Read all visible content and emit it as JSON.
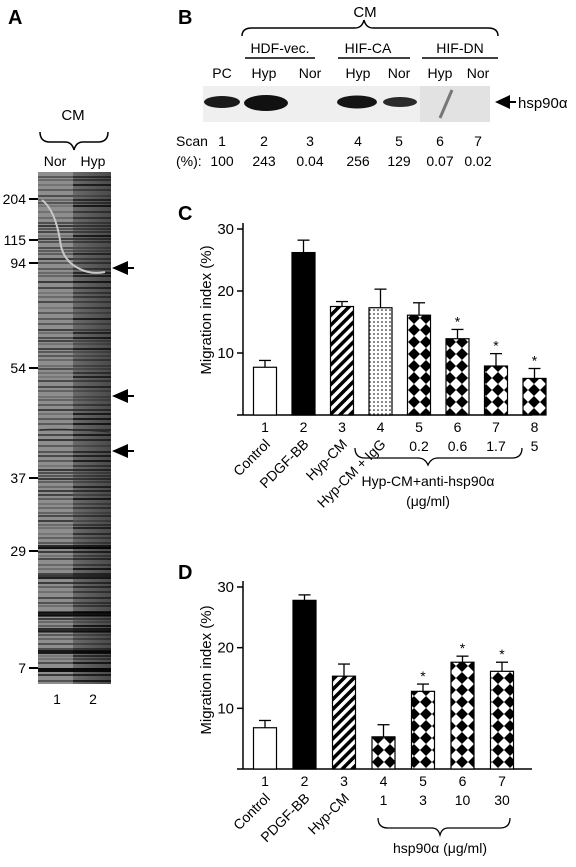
{
  "panels": {
    "a": "A",
    "b": "B",
    "c": "C",
    "d": "D"
  },
  "panel_a": {
    "cm_label": "CM",
    "lane_headers": [
      "Nor",
      "Hyp"
    ],
    "lane_numbers": [
      "1",
      "2"
    ],
    "markers": [
      {
        "label": "204",
        "kda": 204
      },
      {
        "label": "115",
        "kda": 115
      },
      {
        "label": "94",
        "kda": 94
      },
      {
        "label": "54",
        "kda": 54
      },
      {
        "label": "37",
        "kda": 37
      },
      {
        "label": "29",
        "kda": 29
      },
      {
        "label": "7",
        "kda": 7
      }
    ]
  },
  "panel_b": {
    "cm_label": "CM",
    "groups": [
      "HDF-vec.",
      "HIF-CA",
      "HIF-DN"
    ],
    "lanes": [
      "PC",
      "Hyp",
      "Nor",
      "Hyp",
      "Nor",
      "Hyp",
      "Nor"
    ],
    "scan_label": "Scan",
    "pct_label": "(%):",
    "scan_numbers": [
      "1",
      "2",
      "3",
      "4",
      "5",
      "6",
      "7"
    ],
    "scan_values": [
      "100",
      "243",
      "0.04",
      "256",
      "129",
      "0.07",
      "0.02"
    ],
    "band_label": "hsp90α"
  },
  "chart_data": [
    {
      "type": "bar",
      "panel": "C",
      "ylabel": "Migration index (%)",
      "ylim": [
        0,
        30
      ],
      "yticks": [
        "0",
        "10",
        "20",
        "30"
      ],
      "categories": [
        "Control",
        "PDGF-BB",
        "Hyp-CM",
        "Hyp-CM + IgG",
        "5",
        "6",
        "7",
        "8"
      ],
      "bar_numbers": [
        "1",
        "2",
        "3",
        "4",
        "5",
        "6",
        "7",
        "8"
      ],
      "category_labels": [
        "Control",
        "PDGF-BB",
        "Hyp-CM",
        "Hyp-CM + IgG"
      ],
      "dose_labels": [
        "0.2",
        "0.6",
        "1.7",
        "5"
      ],
      "group_label": "Hyp-CM+anti-hsp90α",
      "group_unit": "(μg/ml)",
      "values": [
        7.7,
        26.2,
        17.5,
        17.3,
        16.1,
        12.3,
        7.9,
        5.9
      ],
      "errors": [
        1.1,
        2.0,
        0.8,
        3.0,
        2.0,
        1.5,
        2.0,
        1.6
      ],
      "significant": [
        false,
        false,
        false,
        false,
        false,
        true,
        true,
        true
      ],
      "fills": [
        "white",
        "black",
        "hatch",
        "dots",
        "diamond",
        "diamond",
        "diamond",
        "diamond"
      ]
    },
    {
      "type": "bar",
      "panel": "D",
      "ylabel": "Migration index (%)",
      "ylim": [
        0,
        30
      ],
      "yticks": [
        "0",
        "10",
        "20",
        "30"
      ],
      "categories": [
        "Control",
        "PDGF-BB",
        "Hyp-CM",
        "1",
        "3",
        "10",
        "30"
      ],
      "bar_numbers": [
        "1",
        "2",
        "3",
        "4",
        "5",
        "6",
        "7"
      ],
      "category_labels": [
        "Control",
        "PDGF-BB",
        "Hyp-CM"
      ],
      "dose_labels": [
        "1",
        "3",
        "10",
        "30"
      ],
      "group_label": "hsp90α (μg/ml)",
      "values": [
        6.8,
        27.8,
        15.3,
        5.3,
        12.8,
        17.6,
        16.1
      ],
      "errors": [
        1.2,
        0.9,
        2.0,
        2.0,
        1.2,
        1.0,
        1.5
      ],
      "significant": [
        false,
        false,
        false,
        false,
        true,
        true,
        true
      ],
      "fills": [
        "white",
        "black",
        "hatch",
        "diamond",
        "diamond",
        "diamond",
        "diamond"
      ]
    }
  ]
}
